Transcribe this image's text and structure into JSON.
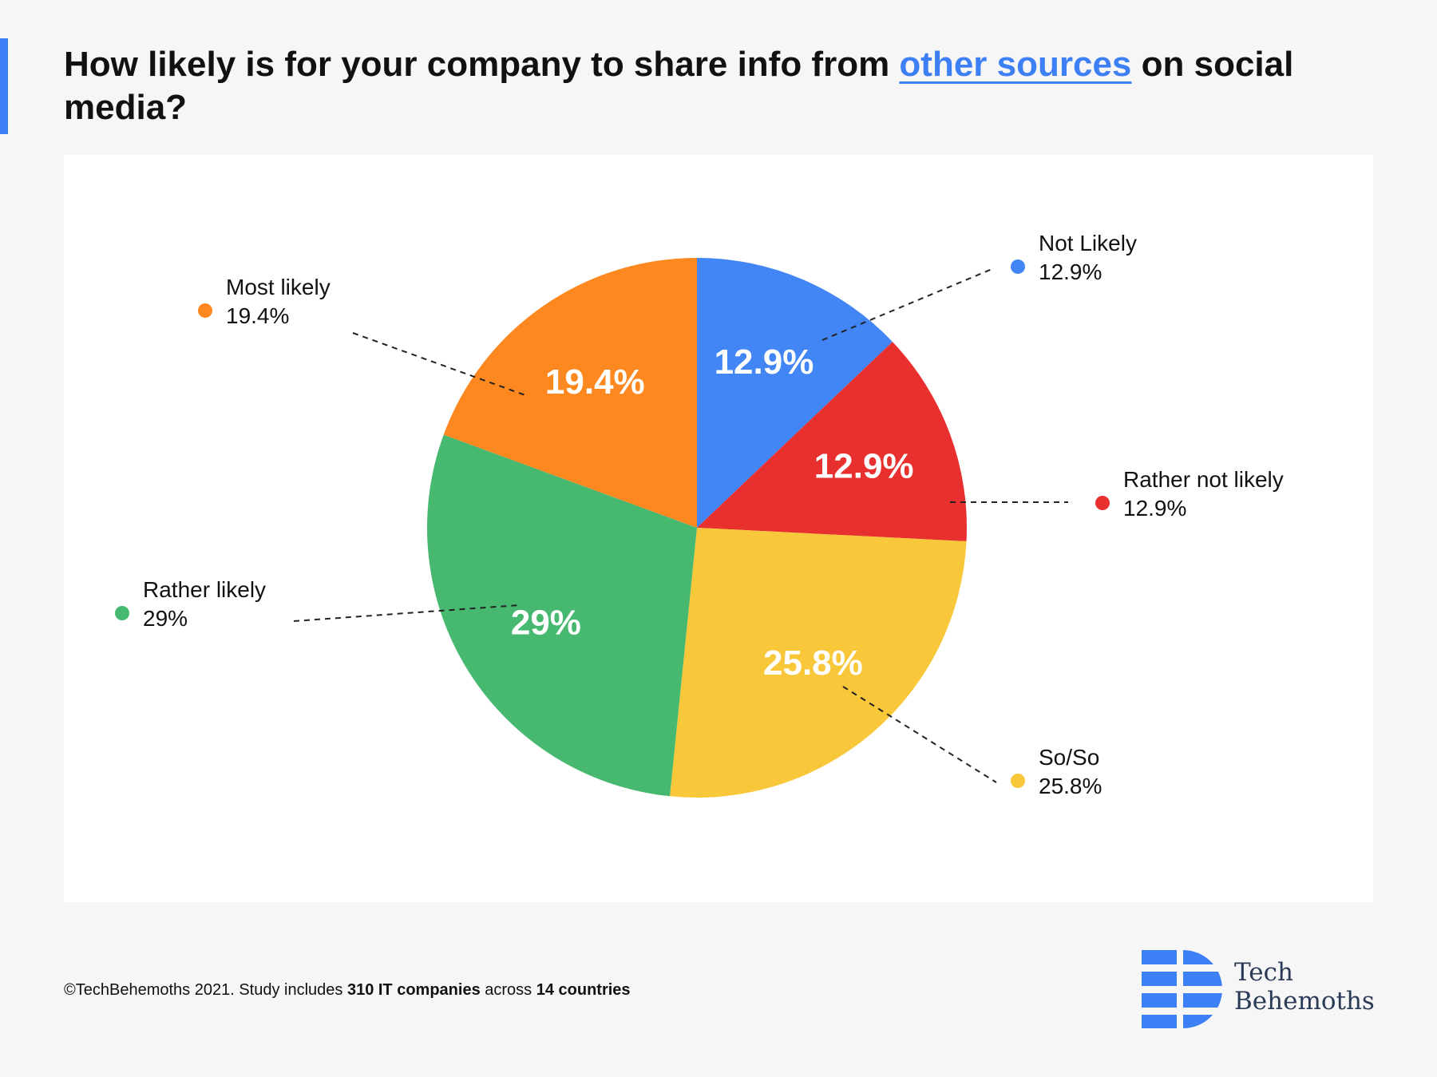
{
  "title": {
    "before": "How likely is for your company to share info from ",
    "highlight": "other sources",
    "after": " on social media?"
  },
  "colors": {
    "accent": "#3d7ff5",
    "not_likely": "#4285f4",
    "rather_not_likely": "#e8302f",
    "so_so": "#f9c73a",
    "rather_likely": "#47b86f",
    "most_likely": "#fd8820"
  },
  "chart_data": {
    "type": "pie",
    "series": [
      {
        "label": "Not Likely",
        "value": 12.9,
        "display": "12.9%",
        "color": "#4285f4"
      },
      {
        "label": "Rather not likely",
        "value": 12.9,
        "display": "12.9%",
        "color": "#e8302f"
      },
      {
        "label": "So/So",
        "value": 25.8,
        "display": "25.8%",
        "color": "#f9c73a"
      },
      {
        "label": "Rather likely",
        "value": 29,
        "display": "29%",
        "color": "#47b86f"
      },
      {
        "label": "Most likely",
        "value": 19.4,
        "display": "19.4%",
        "color": "#fd8820"
      }
    ],
    "start_angle_deg": 0,
    "direction": "clockwise",
    "legend": "callouts-around-pie"
  },
  "footer": {
    "copyright": "©TechBehemoths 2021. Study includes ",
    "companies": "310 IT companies",
    "across": " across ",
    "countries": "14 countries"
  },
  "logo": {
    "line1": "Tech",
    "line2": "Behemoths",
    "icon": "techbehemoths-logo-icon"
  }
}
